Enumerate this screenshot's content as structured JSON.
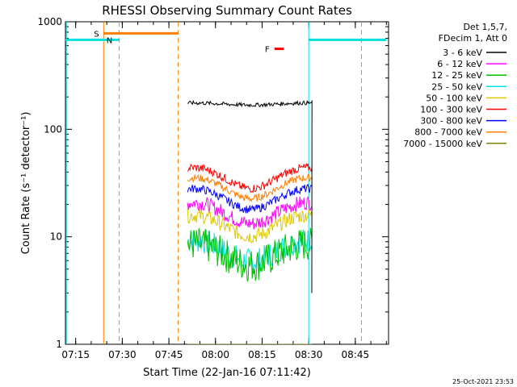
{
  "chart_data": {
    "type": "line",
    "title": "RHESSI Observing Summary Count Rates",
    "xlabel": "Start Time (22-Jan-16 07:11:42)",
    "ylabel": "Count Rate (s⁻¹ detector⁻¹)",
    "x_ticks": [
      "07:15",
      "07:30",
      "07:45",
      "08:00",
      "08:15",
      "08:30",
      "08:45"
    ],
    "x_range_minutes": [
      0,
      104
    ],
    "y_scale": "log",
    "ylim": [
      1,
      1000
    ],
    "y_ticks": [
      "1",
      "10",
      "100",
      "1000"
    ],
    "legend_header": [
      "Det 1,5,7,",
      "FDecim 1, Att 0"
    ],
    "series": [
      {
        "name": "3 - 6 keV",
        "color": "#000000",
        "start": "07:51",
        "end": "08:31",
        "level": 172,
        "noise": 0.018,
        "drop_to": 3
      },
      {
        "name": "6 - 12 keV",
        "color": "#ff00ff",
        "start": "07:51",
        "end": "08:31",
        "level": 17,
        "noise": 0.07
      },
      {
        "name": "12 - 25 keV",
        "color": "#00c000",
        "start": "07:51",
        "end": "08:31",
        "level": 7.0,
        "noise": 0.16
      },
      {
        "name": "25 - 50 keV",
        "color": "#00e0e0",
        "start": "07:51",
        "end": "08:31",
        "level": 7.6,
        "noise": 0.12
      },
      {
        "name": "50 - 100 keV",
        "color": "#e0c800",
        "start": "07:51",
        "end": "08:31",
        "level": 13,
        "noise": 0.07
      },
      {
        "name": "100 - 300 keV",
        "color": "#ff0000",
        "start": "07:51",
        "end": "08:31",
        "level": 36,
        "noise": 0.04
      },
      {
        "name": "300 - 800 keV",
        "color": "#0000ff",
        "start": "07:51",
        "end": "08:31",
        "level": 23,
        "noise": 0.04
      },
      {
        "name": "800 - 7000 keV",
        "color": "#ff8000",
        "start": "07:51",
        "end": "08:31",
        "level": 29,
        "noise": 0.035
      },
      {
        "name": "7000 - 15000 keV",
        "color": "#808000",
        "start": "07:51",
        "end": "08:31",
        "level": 1.0,
        "noise": 0.0
      }
    ],
    "bars": [
      {
        "label": "",
        "color": "#00e0e0",
        "y": 680,
        "start": "07:11:42",
        "end": "07:28"
      },
      {
        "label": "S",
        "color": "#ff8000",
        "y": 780,
        "start": "07:24",
        "end": "07:48"
      },
      {
        "label": "N",
        "color": "#00e0e0",
        "y": 680,
        "start": "07:28",
        "end": "07:29"
      },
      {
        "label": "F",
        "color": "#ff0000",
        "y": 560,
        "start": "08:19",
        "end": "08:22"
      },
      {
        "label": "",
        "color": "#00e0e0",
        "y": 680,
        "start": "08:30",
        "end": "08:55"
      }
    ],
    "vlines": [
      {
        "time": "07:12",
        "color": "#00e0e0",
        "style": "solid"
      },
      {
        "time": "07:24",
        "color": "#ff8000",
        "style": "solid"
      },
      {
        "time": "07:29",
        "color": "#00e0e0",
        "style": "dashed"
      },
      {
        "time": "07:48",
        "color": "#ff8000",
        "style": "dashed"
      },
      {
        "time": "08:30",
        "color": "#00e0e0",
        "style": "solid"
      },
      {
        "time": "08:47",
        "color": "#00e0e0",
        "style": "dashed"
      }
    ],
    "grid": false,
    "legend_position": "right"
  },
  "footer": {
    "timestamp": "25-Oct-2021 23:53"
  }
}
